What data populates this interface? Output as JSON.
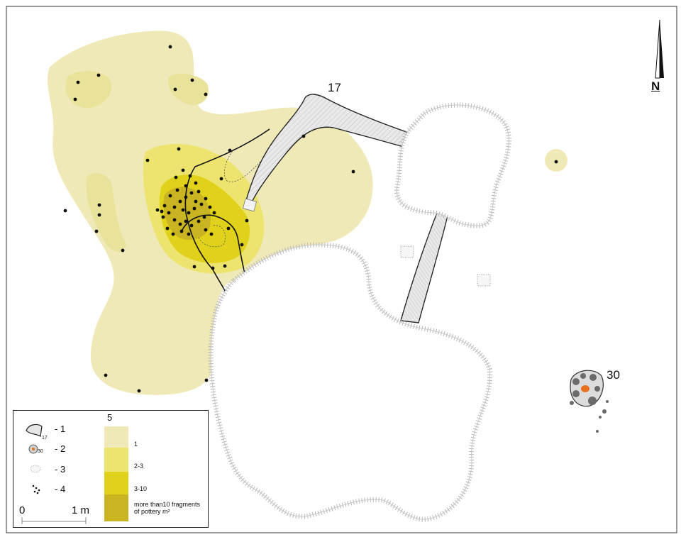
{
  "map": {
    "features": {
      "f17": "17",
      "f30": "30"
    },
    "north_label": "N",
    "colors": {
      "density_1": "#efe9b8",
      "density_2_3": "#ece46e",
      "density_3_10": "#e0d21a",
      "density_gt10": "#c8b521",
      "pit_fill": "#ffffff",
      "hatch": "#9a9a9a",
      "hearth_stone": "#6b6b6b",
      "hearth_core": "#e8701e"
    }
  },
  "legend": {
    "items": [
      {
        "icon": "ditch-outline-icon",
        "label": "- 1",
        "sub": "17"
      },
      {
        "icon": "hearth-icon",
        "label": "- 2",
        "sub": "30"
      },
      {
        "icon": "pit-icon",
        "label": "- 3"
      },
      {
        "icon": "pottery-dots-icon",
        "label": "- 4"
      }
    ],
    "density_title": "5",
    "density_classes": [
      "1",
      "2-3",
      "3-10",
      "more than10 fragments of pottery m²"
    ],
    "scale": {
      "start": "0",
      "end": "1 m"
    }
  }
}
